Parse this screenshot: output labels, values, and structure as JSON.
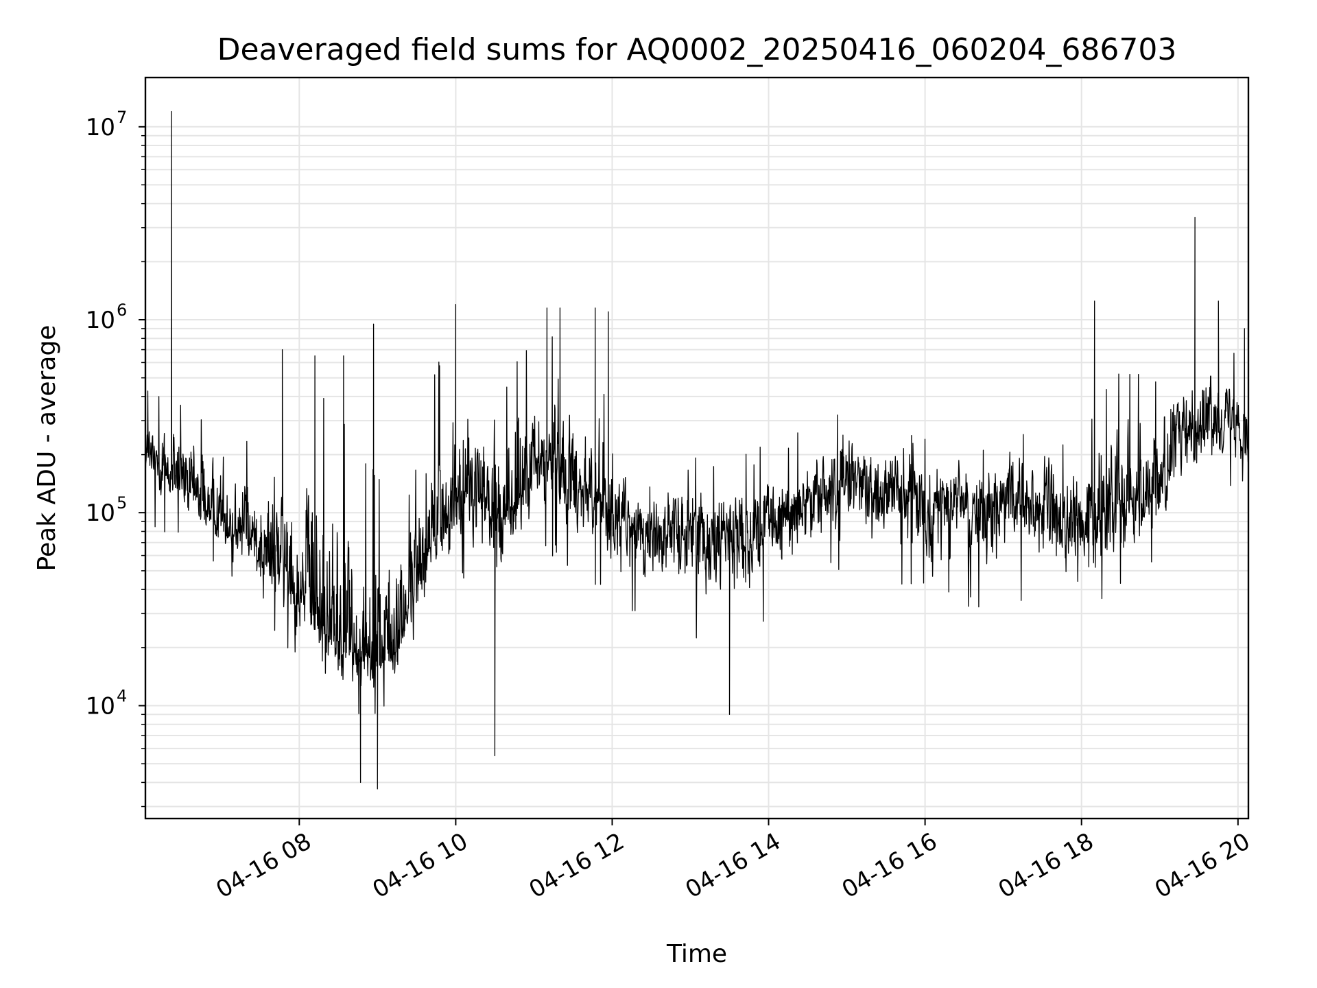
{
  "chart_data": {
    "type": "line",
    "title": "Deaveraged field sums for AQ0002_20250416_060204_686703",
    "xlabel": "Time",
    "ylabel": "Peak ADU - average",
    "yscale": "log",
    "ylim": [
      2600,
      18000000
    ],
    "xlim": [
      "04-16 06:02",
      "04-16 20:08"
    ],
    "grid": true,
    "line_color": "#000000",
    "grid_color": "#e5e5e5",
    "x_ticks": [
      {
        "label": "04-16 08",
        "time": "08:00"
      },
      {
        "label": "04-16 10",
        "time": "10:00"
      },
      {
        "label": "04-16 12",
        "time": "12:00"
      },
      {
        "label": "04-16 14",
        "time": "14:00"
      },
      {
        "label": "04-16 16",
        "time": "16:00"
      },
      {
        "label": "04-16 18",
        "time": "18:00"
      },
      {
        "label": "04-16 20",
        "time": "20:00"
      }
    ],
    "y_ticks": [
      {
        "base": "10",
        "exp": "4",
        "value": 10000
      },
      {
        "base": "10",
        "exp": "5",
        "value": 100000
      },
      {
        "base": "10",
        "exp": "6",
        "value": 1000000
      },
      {
        "base": "10",
        "exp": "7",
        "value": 10000000
      }
    ],
    "series": [
      {
        "times": [
          "06:02",
          "06:15",
          "06:30",
          "06:45",
          "07:00",
          "07:15",
          "07:30",
          "07:45",
          "08:00",
          "08:15",
          "08:30",
          "08:45",
          "09:00",
          "09:15",
          "09:30",
          "09:45",
          "10:00",
          "10:15",
          "10:30",
          "10:45",
          "11:00",
          "11:15",
          "11:30",
          "11:45",
          "12:00",
          "12:15",
          "12:30",
          "12:45",
          "13:00",
          "13:15",
          "13:30",
          "13:45",
          "14:00",
          "14:15",
          "14:30",
          "14:45",
          "15:00",
          "15:15",
          "15:30",
          "15:45",
          "16:00",
          "16:15",
          "16:30",
          "16:45",
          "17:00",
          "17:15",
          "17:30",
          "17:45",
          "18:00",
          "18:15",
          "18:30",
          "18:45",
          "19:00",
          "19:15",
          "19:30",
          "19:45",
          "20:00",
          "20:08"
        ],
        "median": [
          200000,
          170000,
          140000,
          120000,
          100000,
          85000,
          70000,
          55000,
          45000,
          30000,
          22000,
          20000,
          18000,
          20000,
          50000,
          80000,
          120000,
          130000,
          100000,
          110000,
          160000,
          200000,
          150000,
          130000,
          100000,
          85000,
          80000,
          85000,
          85000,
          80000,
          80000,
          80000,
          85000,
          95000,
          110000,
          130000,
          140000,
          140000,
          130000,
          120000,
          110000,
          110000,
          105000,
          100000,
          110000,
          120000,
          105000,
          95000,
          80000,
          100000,
          120000,
          130000,
          140000,
          250000,
          280000,
          320000,
          300000,
          250000
        ],
        "low": [
          90000,
          80000,
          70000,
          60000,
          45000,
          35000,
          25000,
          20000,
          14000,
          9000,
          8000,
          8000,
          9000,
          10000,
          20000,
          30000,
          40000,
          40000,
          25000,
          30000,
          50000,
          60000,
          50000,
          40000,
          30000,
          25000,
          25000,
          25000,
          22000,
          20000,
          25000,
          22000,
          25000,
          30000,
          40000,
          45000,
          50000,
          45000,
          40000,
          35000,
          35000,
          33000,
          32000,
          30000,
          32000,
          35000,
          32000,
          28000,
          25000,
          30000,
          40000,
          45000,
          50000,
          100000,
          130000,
          150000,
          130000,
          110000
        ],
        "high": [
          450000,
          500000,
          420000,
          380000,
          300000,
          250000,
          350000,
          500000,
          450000,
          500000,
          400000,
          250000,
          150000,
          200000,
          500000,
          600000,
          800000,
          700000,
          500000,
          600000,
          800000,
          900000,
          700000,
          600000,
          450000,
          180000,
          170000,
          180000,
          200000,
          180000,
          200000,
          220000,
          220000,
          250000,
          300000,
          350000,
          380000,
          380000,
          350000,
          320000,
          300000,
          280000,
          280000,
          260000,
          300000,
          320000,
          280000,
          260000,
          280000,
          500000,
          600000,
          550000,
          600000,
          700000,
          800000,
          900000,
          800000,
          700000
        ],
        "spikes": [
          {
            "time": "06:22",
            "value": 12000000
          },
          {
            "time": "07:47",
            "value": 700000
          },
          {
            "time": "08:12",
            "value": 650000
          },
          {
            "time": "08:34",
            "value": 650000
          },
          {
            "time": "08:47",
            "value": 4000
          },
          {
            "time": "08:57",
            "value": 950000
          },
          {
            "time": "09:00",
            "value": 3700
          },
          {
            "time": "10:00",
            "value": 1200000
          },
          {
            "time": "10:30",
            "value": 5500
          },
          {
            "time": "11:10",
            "value": 1150000
          },
          {
            "time": "11:20",
            "value": 1150000
          },
          {
            "time": "11:47",
            "value": 1150000
          },
          {
            "time": "11:57",
            "value": 1100000
          },
          {
            "time": "13:30",
            "value": 9000
          },
          {
            "time": "18:10",
            "value": 1250000
          },
          {
            "time": "19:27",
            "value": 3400000
          },
          {
            "time": "19:45",
            "value": 1250000
          },
          {
            "time": "20:05",
            "value": 900000
          }
        ]
      }
    ]
  }
}
